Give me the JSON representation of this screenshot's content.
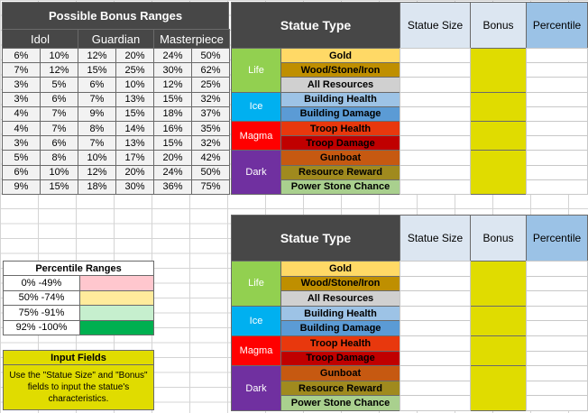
{
  "bonus_ranges": {
    "title": "Possible Bonus Ranges",
    "headers": [
      "Idol",
      "Guardian",
      "Masterpiece"
    ],
    "rows": [
      [
        "6%",
        "10%",
        "12%",
        "20%",
        "24%",
        "50%"
      ],
      [
        "7%",
        "12%",
        "15%",
        "25%",
        "30%",
        "62%"
      ],
      [
        "3%",
        "5%",
        "6%",
        "10%",
        "12%",
        "25%"
      ],
      [
        "3%",
        "6%",
        "7%",
        "13%",
        "15%",
        "32%"
      ],
      [
        "4%",
        "7%",
        "9%",
        "15%",
        "18%",
        "37%"
      ],
      [
        "4%",
        "7%",
        "8%",
        "14%",
        "16%",
        "35%"
      ],
      [
        "3%",
        "6%",
        "7%",
        "13%",
        "15%",
        "32%"
      ],
      [
        "5%",
        "8%",
        "10%",
        "17%",
        "20%",
        "42%"
      ],
      [
        "6%",
        "10%",
        "12%",
        "20%",
        "24%",
        "50%"
      ],
      [
        "9%",
        "15%",
        "18%",
        "30%",
        "36%",
        "75%"
      ]
    ]
  },
  "statue_tables": [
    {
      "header": {
        "statue_type": "Statue Type",
        "statue_size": "Statue Size",
        "bonus": "Bonus",
        "percentile": "Percentile"
      },
      "groups": [
        {
          "name": "Life",
          "types": [
            "Gold",
            "Wood/Stone/Iron",
            "All Resources"
          ]
        },
        {
          "name": "Ice",
          "types": [
            "Building Health",
            "Building Damage"
          ]
        },
        {
          "name": "Magma",
          "types": [
            "Troop Health",
            "Troop Damage"
          ]
        },
        {
          "name": "Dark",
          "types": [
            "Gunboat",
            "Resource Reward",
            "Power Stone Chance"
          ]
        }
      ]
    },
    {
      "header": {
        "statue_type": "Statue Type",
        "statue_size": "Statue Size",
        "bonus": "Bonus",
        "percentile": "Percentile"
      },
      "groups": [
        {
          "name": "Life",
          "types": [
            "Gold",
            "Wood/Stone/Iron",
            "All Resources"
          ]
        },
        {
          "name": "Ice",
          "types": [
            "Building Health",
            "Building Damage"
          ]
        },
        {
          "name": "Magma",
          "types": [
            "Troop Health",
            "Troop Damage"
          ]
        },
        {
          "name": "Dark",
          "types": [
            "Gunboat",
            "Resource Reward",
            "Power Stone Chance"
          ]
        }
      ]
    }
  ],
  "percentile_ranges": {
    "title": "Percentile Ranges",
    "rows": [
      "0% -49%",
      "50% -74%",
      "75% -91%",
      "92% -100%"
    ]
  },
  "input_fields": {
    "title": "Input Fields",
    "text": "Use the \"Statue Size\" and \"Bonus\" fields to input the statue's characteristics."
  }
}
